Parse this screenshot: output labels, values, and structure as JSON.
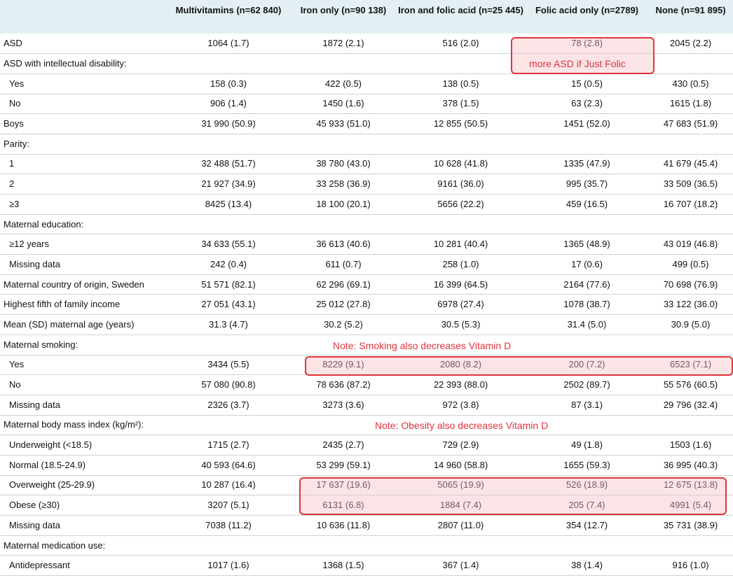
{
  "columns": [
    "",
    "Multivitamins (n=62 840)",
    "Iron only (n=90 138)",
    "Iron and folic acid (n=25 445)",
    "Folic acid only (n=2789)",
    "None (n=91 895)"
  ],
  "rows": [
    {
      "label": "ASD",
      "indent": false,
      "values": [
        "1064 (1.7)",
        "1872 (2.1)",
        "516 (2.0)",
        "78 (2.8)",
        "2045 (2.2)"
      ]
    },
    {
      "label": "ASD with intellectual disability:",
      "indent": false,
      "values": [
        "",
        "",
        "",
        "",
        ""
      ]
    },
    {
      "label": "Yes",
      "indent": true,
      "values": [
        "158 (0.3)",
        "422 (0.5)",
        "138 (0.5)",
        "15 (0.5)",
        "430 (0.5)"
      ]
    },
    {
      "label": "No",
      "indent": true,
      "values": [
        "906 (1.4)",
        "1450 (1.6)",
        "378 (1.5)",
        "63 (2.3)",
        "1615 (1.8)"
      ]
    },
    {
      "label": "Boys",
      "indent": false,
      "values": [
        "31 990 (50.9)",
        "45 933 (51.0)",
        "12 855 (50.5)",
        "1451 (52.0)",
        "47 683 (51.9)"
      ]
    },
    {
      "label": "Parity:",
      "indent": false,
      "values": [
        "",
        "",
        "",
        "",
        ""
      ]
    },
    {
      "label": "1",
      "indent": true,
      "values": [
        "32 488 (51.7)",
        "38 780 (43.0)",
        "10 628 (41.8)",
        "1335 (47.9)",
        "41 679 (45.4)"
      ]
    },
    {
      "label": "2",
      "indent": true,
      "values": [
        "21 927 (34.9)",
        "33 258 (36.9)",
        "9161 (36.0)",
        "995 (35.7)",
        "33 509 (36.5)"
      ]
    },
    {
      "label": "≥3",
      "indent": true,
      "values": [
        "8425 (13.4)",
        "18 100 (20.1)",
        "5656 (22.2)",
        "459 (16.5)",
        "16 707 (18.2)"
      ]
    },
    {
      "label": "Maternal education:",
      "indent": false,
      "values": [
        "",
        "",
        "",
        "",
        ""
      ]
    },
    {
      "label": "≥12 years",
      "indent": true,
      "values": [
        "34 633 (55.1)",
        "36 613 (40.6)",
        "10 281 (40.4)",
        "1365 (48.9)",
        "43 019 (46.8)"
      ]
    },
    {
      "label": "Missing data",
      "indent": true,
      "values": [
        "242 (0.4)",
        "611 (0.7)",
        "258 (1.0)",
        "17 (0.6)",
        "499 (0.5)"
      ]
    },
    {
      "label": "Maternal country of origin, Sweden",
      "indent": false,
      "values": [
        "51 571 (82.1)",
        "62 296 (69.1)",
        "16 399 (64.5)",
        "2164 (77.6)",
        "70 698 (76.9)"
      ]
    },
    {
      "label": "Highest fifth of family income",
      "indent": false,
      "values": [
        "27 051 (43.1)",
        "25 012 (27.8)",
        "6978 (27.4)",
        "1078 (38.7)",
        "33 122 (36.0)"
      ]
    },
    {
      "label": "Mean (SD) maternal age (years)",
      "indent": false,
      "values": [
        "31.3 (4.7)",
        "30.2 (5.2)",
        "30.5 (5.3)",
        "31.4 (5.0)",
        "30.9 (5.0)"
      ]
    },
    {
      "label": "Maternal smoking:",
      "indent": false,
      "values": [
        "",
        "",
        "",
        "",
        ""
      ]
    },
    {
      "label": "Yes",
      "indent": true,
      "values": [
        "3434 (5.5)",
        "8229 (9.1)",
        "2080 (8.2)",
        "200 (7.2)",
        "6523 (7.1)"
      ]
    },
    {
      "label": "No",
      "indent": true,
      "values": [
        "57 080 (90.8)",
        "78 636 (87.2)",
        "22 393 (88.0)",
        "2502 (89.7)",
        "55 576 (60.5)"
      ]
    },
    {
      "label": "Missing data",
      "indent": true,
      "values": [
        "2326 (3.7)",
        "3273 (3.6)",
        "972 (3.8)",
        "87 (3.1)",
        "29 796 (32.4)"
      ]
    },
    {
      "label": "Maternal body mass index (kg/m²):",
      "indent": false,
      "values": [
        "",
        "",
        "",
        "",
        ""
      ]
    },
    {
      "label": "Underweight (<18.5)",
      "indent": true,
      "values": [
        "1715 (2.7)",
        "2435 (2.7)",
        "729 (2.9)",
        "49 (1.8)",
        "1503 (1.6)"
      ]
    },
    {
      "label": "Normal (18.5-24.9)",
      "indent": true,
      "values": [
        "40 593 (64.6)",
        "53 299 (59.1)",
        "14 960 (58.8)",
        "1655 (59.3)",
        "36 995 (40.3)"
      ]
    },
    {
      "label": "Overweight (25-29.9)",
      "indent": true,
      "values": [
        "10 287 (16.4)",
        "17 637 (19.6)",
        "5065 (19.9)",
        "526 (18.9)",
        "12 675 (13.8)"
      ]
    },
    {
      "label": "Obese (≥30)",
      "indent": true,
      "values": [
        "3207 (5.1)",
        "6131 (6.8)",
        "1884 (7.4)",
        "205 (7.4)",
        "4991 (5.4)"
      ]
    },
    {
      "label": "Missing data",
      "indent": true,
      "values": [
        "7038 (11.2)",
        "10 636 (11.8)",
        "2807 (11.0)",
        "354 (12.7)",
        "35 731 (38.9)"
      ]
    },
    {
      "label": "Maternal medication use:",
      "indent": false,
      "values": [
        "",
        "",
        "",
        "",
        ""
      ]
    },
    {
      "label": "Antidepressant",
      "indent": true,
      "values": [
        "1017 (1.6)",
        "1368 (1.5)",
        "367 (1.4)",
        "38 (1.4)",
        "916 (1.0)"
      ]
    }
  ],
  "annotations": {
    "folic_note": "more ASD if Just Folic",
    "smoking_note": "Note: Smoking also decreases Vitamin D",
    "obesity_note": "Note: Obesity also decreases Vitamin D",
    "highlight_color": "#e0343c"
  }
}
